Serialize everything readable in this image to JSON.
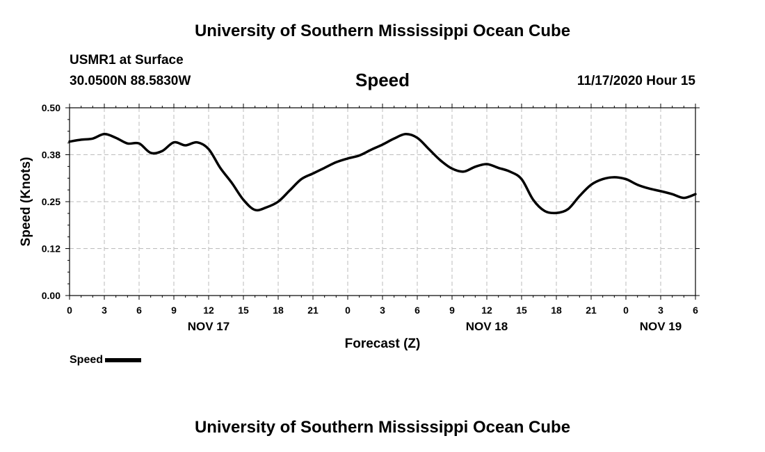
{
  "header": {
    "title": "University of Southern Mississippi Ocean Cube",
    "station": "USMR1 at Surface",
    "coords": "30.0500N 88.5830W",
    "date": "11/17/2020 Hour 15"
  },
  "footer": {
    "title": "University of Southern Mississippi Ocean Cube"
  },
  "chart_data": {
    "type": "line",
    "title": "Speed",
    "xlabel": "Forecast (Z)",
    "ylabel": "Speed (Knots)",
    "ylim": [
      0,
      0.5
    ],
    "yticks": [
      "0.00",
      "0.12",
      "0.25",
      "0.38",
      "0.50"
    ],
    "xlim": [
      0,
      54
    ],
    "xticks": [
      "0",
      "3",
      "6",
      "9",
      "12",
      "15",
      "18",
      "21",
      "0",
      "3",
      "6",
      "9",
      "12",
      "15",
      "18",
      "21",
      "0",
      "3",
      "6"
    ],
    "date_labels": [
      {
        "label": "NOV 17",
        "x": 12
      },
      {
        "label": "NOV 18",
        "x": 36
      },
      {
        "label": "NOV 19",
        "x": 51
      }
    ],
    "grid": true,
    "line_color": "#000000",
    "legend": {
      "label": "Speed",
      "placement": "bottom-left"
    },
    "series": [
      {
        "name": "Speed",
        "x": [
          0,
          1,
          2,
          3,
          4,
          5,
          6,
          7,
          8,
          9,
          10,
          11,
          12,
          13,
          14,
          15,
          16,
          17,
          18,
          19,
          20,
          21,
          22,
          23,
          24,
          25,
          26,
          27,
          28,
          29,
          30,
          31,
          32,
          33,
          34,
          35,
          36,
          37,
          38,
          39,
          40,
          41,
          42,
          43,
          44,
          45,
          46,
          47,
          48,
          49,
          50,
          51,
          52,
          53,
          54
        ],
        "values": [
          0.41,
          0.415,
          0.418,
          0.43,
          0.42,
          0.405,
          0.405,
          0.38,
          0.385,
          0.408,
          0.4,
          0.408,
          0.39,
          0.34,
          0.3,
          0.255,
          0.228,
          0.235,
          0.25,
          0.28,
          0.31,
          0.325,
          0.34,
          0.355,
          0.365,
          0.373,
          0.388,
          0.402,
          0.418,
          0.43,
          0.42,
          0.39,
          0.36,
          0.338,
          0.33,
          0.343,
          0.35,
          0.34,
          0.33,
          0.31,
          0.255,
          0.225,
          0.22,
          0.23,
          0.265,
          0.295,
          0.31,
          0.315,
          0.31,
          0.295,
          0.285,
          0.278,
          0.27,
          0.26,
          0.27
        ]
      }
    ]
  }
}
